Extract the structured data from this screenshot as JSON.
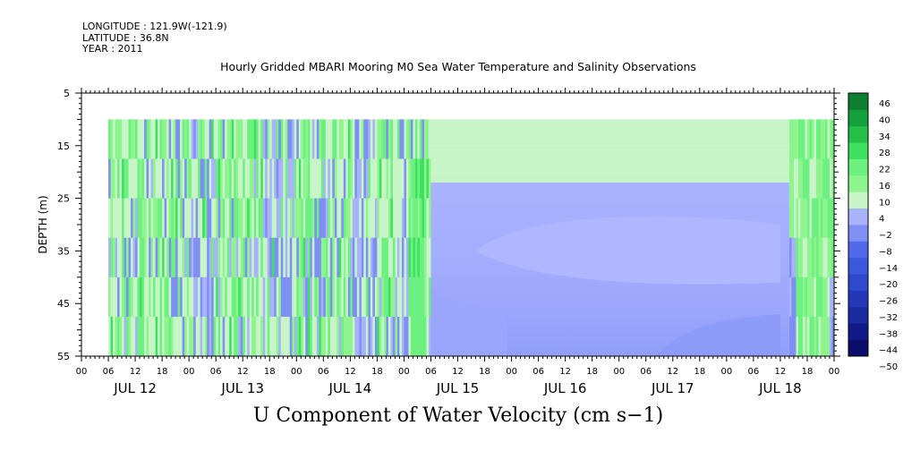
{
  "header": {
    "longitude": "LONGITUDE : 121.9W(-121.9)",
    "latitude": "LATITUDE : 36.8N",
    "year": "YEAR : 2011"
  },
  "chart_data": {
    "type": "heatmap",
    "title": "Hourly Gridded MBARI Mooring M0 Sea Water Temperature and Salinity Observations",
    "footer_title": "U Component of Water Velocity (cm s−1)",
    "ylabel": "DEPTH (m)",
    "xlabel": "",
    "ylim": [
      55,
      5
    ],
    "y_ticks": [
      5,
      15,
      25,
      35,
      45,
      55
    ],
    "x_range_hours": [
      0,
      168
    ],
    "x_tick_labels": [
      "00",
      "06",
      "12",
      "18",
      "00",
      "06",
      "12",
      "18",
      "00",
      "06",
      "12",
      "18",
      "00",
      "06",
      "12",
      "18",
      "00",
      "06",
      "12",
      "18",
      "00",
      "06",
      "12",
      "18",
      "00",
      "06",
      "12",
      "18",
      "00"
    ],
    "day_labels": [
      "JUL 12",
      "JUL 13",
      "JUL 14",
      "JUL 15",
      "JUL 16",
      "JUL 17",
      "JUL 18"
    ],
    "data_depth_range": [
      10,
      55
    ],
    "colorbar": {
      "levels": [
        -50,
        -44,
        -38,
        -32,
        -26,
        -20,
        -14,
        -8,
        -2,
        4,
        10,
        16,
        22,
        28,
        34,
        40,
        46
      ],
      "labels": [
        "46",
        "40",
        "34",
        "28",
        "22",
        "16",
        "10",
        "4",
        "−2",
        "−8",
        "−14",
        "−20",
        "−26",
        "−32",
        "−38",
        "−44",
        "−50"
      ]
    },
    "regions": [
      {
        "period": "JUL 12 06 – JUL 15 06",
        "depth": "10–55 m",
        "u_range": "-8 to 22",
        "pattern": "rapidly alternating vertical bands"
      },
      {
        "period": "JUL 15 06 – JUL 18 14",
        "depth": "10–22 m",
        "u_range": "4 to 10"
      },
      {
        "period": "JUL 15 06 – JUL 18 14",
        "depth": "22–55 m",
        "u_range": "-14 to -2"
      },
      {
        "period": "JUL 18 14 – JUL 19 00",
        "depth": "10–55 m",
        "u_range": "4 to 22"
      }
    ]
  }
}
